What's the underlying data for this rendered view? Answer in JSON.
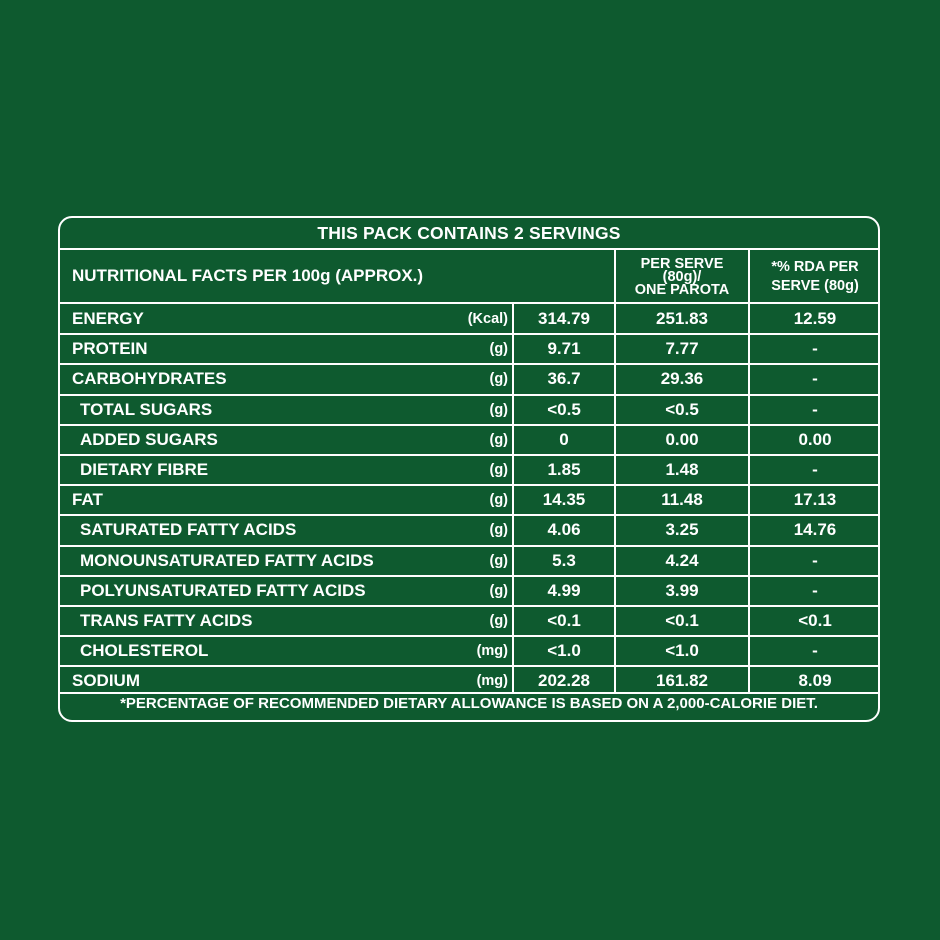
{
  "title": "THIS PACK CONTAINS 2 SERVINGS",
  "header": {
    "label": "NUTRITIONAL FACTS PER 100g (APPROX.)",
    "col_serve": [
      "PER SERVE",
      "(80g)/",
      "ONE PAROTA"
    ],
    "col_rda": [
      "*% RDA PER",
      "SERVE (80g)"
    ]
  },
  "rows": [
    {
      "name": "ENERGY",
      "unit": "(Kcal)",
      "per100": "314.79",
      "serve": "251.83",
      "rda": "12.59",
      "sub": false
    },
    {
      "name": "PROTEIN",
      "unit": "(g)",
      "per100": "9.71",
      "serve": "7.77",
      "rda": "-",
      "sub": false
    },
    {
      "name": "CARBOHYDRATES",
      "unit": "(g)",
      "per100": "36.7",
      "serve": "29.36",
      "rda": "-",
      "sub": false
    },
    {
      "name": "TOTAL SUGARS",
      "unit": "(g)",
      "per100": "<0.5",
      "serve": "<0.5",
      "rda": "-",
      "sub": true
    },
    {
      "name": "ADDED SUGARS",
      "unit": "(g)",
      "per100": "0",
      "serve": "0.00",
      "rda": "0.00",
      "sub": true
    },
    {
      "name": "DIETARY FIBRE",
      "unit": "(g)",
      "per100": "1.85",
      "serve": "1.48",
      "rda": "-",
      "sub": true
    },
    {
      "name": "FAT",
      "unit": "(g)",
      "per100": "14.35",
      "serve": "11.48",
      "rda": "17.13",
      "sub": false
    },
    {
      "name": "SATURATED FATTY ACIDS",
      "unit": "(g)",
      "per100": "4.06",
      "serve": "3.25",
      "rda": "14.76",
      "sub": true
    },
    {
      "name": "MONOUNSATURATED FATTY ACIDS",
      "unit": "(g)",
      "per100": "5.3",
      "serve": "4.24",
      "rda": "-",
      "sub": true
    },
    {
      "name": "POLYUNSATURATED FATTY ACIDS",
      "unit": "(g)",
      "per100": "4.99",
      "serve": "3.99",
      "rda": "-",
      "sub": true
    },
    {
      "name": "TRANS FATTY ACIDS",
      "unit": "(g)",
      "per100": "<0.1",
      "serve": "<0.1",
      "rda": "<0.1",
      "sub": true
    },
    {
      "name": "CHOLESTEROL",
      "unit": "(mg)",
      "per100": "<1.0",
      "serve": "<1.0",
      "rda": "-",
      "sub": true
    },
    {
      "name": "SODIUM",
      "unit": "(mg)",
      "per100": "202.28",
      "serve": "161.82",
      "rda": "8.09",
      "sub": false
    }
  ],
  "footer": "*PERCENTAGE OF RECOMMENDED DIETARY ALLOWANCE IS BASED ON A 2,000-CALORIE DIET.",
  "colors": {
    "background": "#0e5a2f",
    "text": "#ffffff",
    "border": "#ffffff"
  }
}
